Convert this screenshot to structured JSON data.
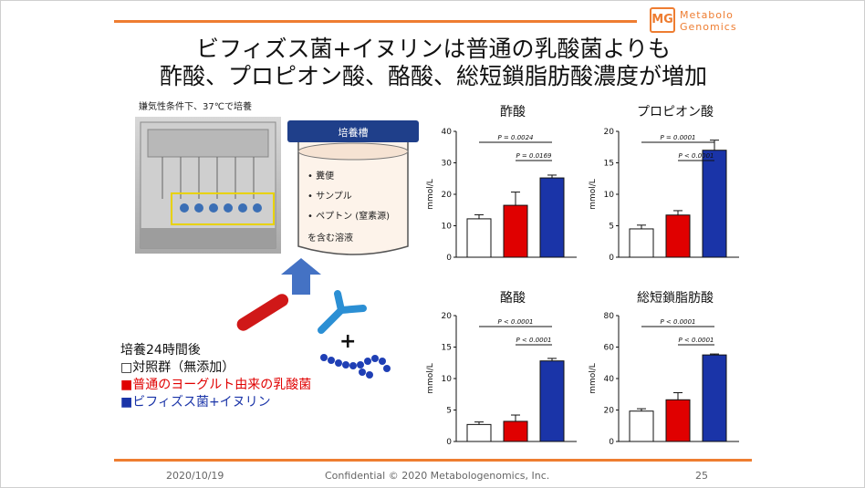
{
  "title": {
    "line1": "ビフィズス菌+イヌリンは普通の乳酸菌よりも",
    "line2": "酢酸、プロピオン酸、酪酸、総短鎖脂肪酸濃度が増加"
  },
  "logo": {
    "mark": "MG",
    "line1": "Metabolo",
    "line2": "Genomics"
  },
  "culture_condition": "嫌気性条件下、37℃で培養",
  "jar": {
    "label": "培養槽",
    "items": [
      "• 糞便",
      "• サンプル",
      "• ペプトン (窒素源)"
    ],
    "tail": "を含む溶液"
  },
  "plus": "+",
  "legend": {
    "heading": "培養24時間後",
    "items": [
      {
        "marker": "□",
        "text": "対照群（無添加）",
        "color": "#111111"
      },
      {
        "marker": "■",
        "text": "普通のヨーグルト由来の乳酸菌",
        "color": "#e00000"
      },
      {
        "marker": "■",
        "text": "ビフィズス菌+イヌリン",
        "color": "#1a34a8"
      }
    ]
  },
  "footer": {
    "date": "2020/10/19",
    "copyright": "Confidential © 2020 Metabologenomics, Inc.",
    "page": "25"
  },
  "colors": {
    "accent": "#ee7d31",
    "control": "#ffffff",
    "lactic": "#e00000",
    "bifido": "#1a34a8"
  },
  "chart_data": [
    {
      "type": "bar",
      "title": "酢酸",
      "ylabel": "mmol/L",
      "categories": [
        "対照群",
        "乳酸菌",
        "ビフィズス菌+イヌリン"
      ],
      "values": [
        12.2,
        16.5,
        25.2
      ],
      "errors": [
        1.3,
        4.2,
        0.9
      ],
      "ylim": [
        0,
        40
      ],
      "yticks": [
        0,
        10,
        20,
        30,
        40
      ],
      "annotations": [
        {
          "text": "P = 0.0024",
          "from": 0,
          "to": 2
        },
        {
          "text": "P = 0.0169",
          "from": 1,
          "to": 2
        }
      ]
    },
    {
      "type": "bar",
      "title": "プロピオン酸",
      "ylabel": "mmol/L",
      "categories": [
        "対照群",
        "乳酸菌",
        "ビフィズス菌+イヌリン"
      ],
      "values": [
        4.5,
        6.7,
        17.0
      ],
      "errors": [
        0.6,
        0.7,
        1.6
      ],
      "ylim": [
        0,
        20
      ],
      "yticks": [
        0,
        5,
        10,
        15,
        20
      ],
      "annotations": [
        {
          "text": "P = 0.0001",
          "from": 0,
          "to": 2
        },
        {
          "text": "P < 0.0001",
          "from": 1,
          "to": 2
        }
      ]
    },
    {
      "type": "bar",
      "title": "酪酸",
      "ylabel": "mmol/L",
      "categories": [
        "対照群",
        "乳酸菌",
        "ビフィズス菌+イヌリン"
      ],
      "values": [
        2.7,
        3.2,
        12.8
      ],
      "errors": [
        0.4,
        1.0,
        0.4
      ],
      "ylim": [
        0,
        20
      ],
      "yticks": [
        0,
        5,
        10,
        15,
        20
      ],
      "annotations": [
        {
          "text": "P < 0.0001",
          "from": 0,
          "to": 2
        },
        {
          "text": "P < 0.0001",
          "from": 1,
          "to": 2
        }
      ]
    },
    {
      "type": "bar",
      "title": "総短鎖脂肪酸",
      "ylabel": "mmol/L",
      "categories": [
        "対照群",
        "乳酸菌",
        "ビフィズス菌+イヌリン"
      ],
      "values": [
        19.3,
        26.5,
        55.0
      ],
      "errors": [
        1.5,
        4.5,
        0.6
      ],
      "ylim": [
        0,
        80
      ],
      "yticks": [
        0,
        20,
        40,
        60,
        80
      ],
      "annotations": [
        {
          "text": "P < 0.0001",
          "from": 0,
          "to": 2
        },
        {
          "text": "P < 0.0001",
          "from": 1,
          "to": 2
        }
      ]
    }
  ]
}
